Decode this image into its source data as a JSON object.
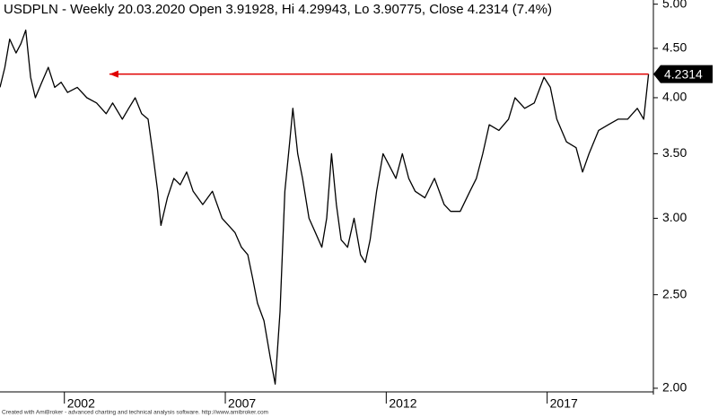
{
  "chart_data": {
    "type": "line",
    "title": "USDPLN - Weekly 20.03.2020 Open 3.91928, Hi 4.29943, Lo 3.90775, Close 4.2314 (7.4%)",
    "footer": "Created with AmiBroker - advanced charting and technical analysis software. http://www.amibroker.com",
    "log_scale": true,
    "xlim": [
      2000.0,
      2020.3
    ],
    "xticks": [
      2002,
      2007,
      2012,
      2017
    ],
    "ylim": [
      1.97,
      5.05
    ],
    "yticks": [
      {
        "value": 5,
        "label": "5.00"
      },
      {
        "value": 4.5,
        "label": "4.50"
      },
      {
        "value": 4,
        "label": "4.00"
      },
      {
        "value": 3.5,
        "label": "3.50"
      },
      {
        "value": 3,
        "label": "3.00"
      },
      {
        "value": 2.5,
        "label": "2.50"
      },
      {
        "value": 2,
        "label": "2.00"
      }
    ],
    "series": [
      {
        "name": "USDPLN",
        "color": "#000000",
        "x": [
          2000.0,
          2000.15,
          2000.3,
          2000.5,
          2000.65,
          2000.8,
          2000.95,
          2001.1,
          2001.3,
          2001.5,
          2001.7,
          2001.9,
          2002.1,
          2002.4,
          2002.7,
          2003.0,
          2003.3,
          2003.5,
          2003.8,
          2004.0,
          2004.2,
          2004.4,
          2004.6,
          2004.75,
          2004.9,
          2005.0,
          2005.2,
          2005.4,
          2005.6,
          2005.8,
          2006.0,
          2006.3,
          2006.6,
          2006.9,
          2007.1,
          2007.3,
          2007.5,
          2007.7,
          2007.85,
          2008.0,
          2008.2,
          2008.4,
          2008.55,
          2008.7,
          2008.85,
          2009.0,
          2009.1,
          2009.25,
          2009.4,
          2009.6,
          2009.8,
          2010.0,
          2010.15,
          2010.3,
          2010.45,
          2010.6,
          2010.8,
          2011.0,
          2011.2,
          2011.35,
          2011.5,
          2011.7,
          2011.9,
          2012.1,
          2012.3,
          2012.5,
          2012.7,
          2012.9,
          2013.2,
          2013.5,
          2013.8,
          2014.0,
          2014.3,
          2014.6,
          2014.8,
          2015.0,
          2015.2,
          2015.5,
          2015.8,
          2016.0,
          2016.3,
          2016.6,
          2016.9,
          2017.1,
          2017.3,
          2017.6,
          2017.9,
          2018.1,
          2018.3,
          2018.6,
          2018.9,
          2019.2,
          2019.5,
          2019.8,
          2020.0,
          2020.15
        ],
        "values": [
          4.1,
          4.3,
          4.6,
          4.45,
          4.55,
          4.7,
          4.2,
          4.0,
          4.15,
          4.3,
          4.1,
          4.15,
          4.05,
          4.1,
          4.0,
          3.95,
          3.85,
          3.95,
          3.8,
          3.9,
          4.0,
          3.85,
          3.8,
          3.5,
          3.2,
          2.95,
          3.15,
          3.3,
          3.25,
          3.35,
          3.2,
          3.1,
          3.2,
          3.0,
          2.95,
          2.9,
          2.8,
          2.75,
          2.6,
          2.45,
          2.35,
          2.15,
          2.02,
          2.4,
          3.2,
          3.6,
          3.9,
          3.5,
          3.3,
          3.0,
          2.9,
          2.8,
          3.0,
          3.5,
          3.1,
          2.85,
          2.8,
          3.0,
          2.75,
          2.7,
          2.85,
          3.2,
          3.5,
          3.4,
          3.3,
          3.5,
          3.3,
          3.2,
          3.15,
          3.3,
          3.1,
          3.05,
          3.05,
          3.2,
          3.3,
          3.5,
          3.75,
          3.7,
          3.8,
          4.0,
          3.9,
          3.95,
          4.2,
          4.1,
          3.8,
          3.6,
          3.55,
          3.35,
          3.5,
          3.7,
          3.75,
          3.8,
          3.8,
          3.9,
          3.8,
          4.2314
        ]
      }
    ],
    "arrow": {
      "y": 4.2314,
      "x": [
        2020.15,
        2003.4
      ],
      "color": "#e00000"
    }
  }
}
